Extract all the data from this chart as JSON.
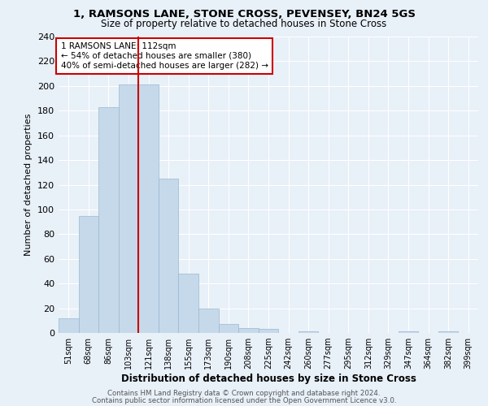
{
  "title_line1": "1, RAMSONS LANE, STONE CROSS, PEVENSEY, BN24 5GS",
  "title_line2": "Size of property relative to detached houses in Stone Cross",
  "xlabel": "Distribution of detached houses by size in Stone Cross",
  "ylabel": "Number of detached properties",
  "footer_line1": "Contains HM Land Registry data © Crown copyright and database right 2024.",
  "footer_line2": "Contains public sector information licensed under the Open Government Licence v3.0.",
  "bin_labels": [
    "51sqm",
    "68sqm",
    "86sqm",
    "103sqm",
    "121sqm",
    "138sqm",
    "155sqm",
    "173sqm",
    "190sqm",
    "208sqm",
    "225sqm",
    "242sqm",
    "260sqm",
    "277sqm",
    "295sqm",
    "312sqm",
    "329sqm",
    "347sqm",
    "364sqm",
    "382sqm",
    "399sqm"
  ],
  "bar_heights": [
    12,
    95,
    183,
    201,
    201,
    125,
    48,
    20,
    7,
    4,
    3,
    0,
    1,
    0,
    0,
    0,
    0,
    1,
    0,
    1,
    0
  ],
  "bar_color": "#c6d9ea",
  "bar_edgecolor": "#9ab8d0",
  "annotation_text_line1": "1 RAMSONS LANE: 112sqm",
  "annotation_text_line2": "← 54% of detached houses are smaller (380)",
  "annotation_text_line3": "40% of semi-detached houses are larger (282) →",
  "ylim": [
    0,
    240
  ],
  "yticks": [
    0,
    20,
    40,
    60,
    80,
    100,
    120,
    140,
    160,
    180,
    200,
    220,
    240
  ],
  "background_color": "#e8f0f8",
  "grid_color": "#ffffff",
  "annotation_box_color": "#ffffff",
  "annotation_box_edgecolor": "#cc0000",
  "red_line_color": "#cc0000",
  "red_line_x": 3.5
}
